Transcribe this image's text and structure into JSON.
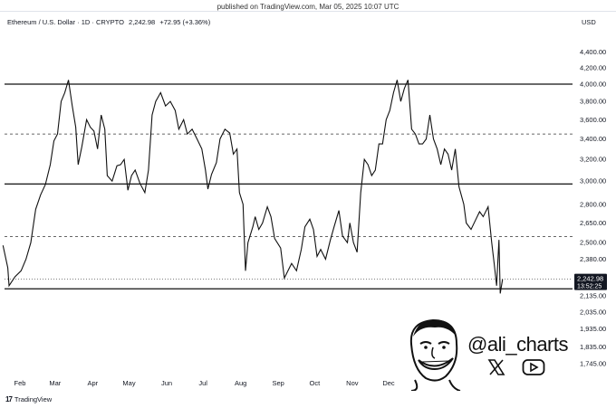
{
  "header": {
    "published": "published on TradingView.com, Mar 05, 2025 10:07 UTC",
    "symbol": "Ethereum / U.S. Dollar · 1D · CRYPTO",
    "last_price": "2,242.98",
    "change": "+72.95 (+3.36%)",
    "currency": "USD"
  },
  "footer": {
    "brand": "TradingView"
  },
  "author": {
    "handle": "@ali_charts",
    "icons": [
      "x-icon",
      "youtube-icon"
    ]
  },
  "price_tag": {
    "price": "2,242.98",
    "countdown": "13:52:25"
  },
  "chart_data": {
    "type": "line",
    "yscale": "log",
    "ylim": [
      1700,
      4700
    ],
    "y_ticks": [
      "4,400.00",
      "4,200.00",
      "4,000.00",
      "3,800.00",
      "3,600.00",
      "3,400.00",
      "3,200.00",
      "3,000.00",
      "2,800.00",
      "2,650.00",
      "2,500.00",
      "2,380.00",
      "2,135.00",
      "2,035.00",
      "1,935.00",
      "1,835.00",
      "1,745.00"
    ],
    "x_ticks": [
      "Feb",
      "Mar",
      "Apr",
      "May",
      "Jun",
      "Jul",
      "Aug",
      "Sep",
      "Oct",
      "Nov",
      "Dec"
    ],
    "levels": {
      "solid": [
        4000,
        2975,
        2180
      ],
      "dashed": [
        3450,
        2545
      ],
      "dotted": [
        2242.98
      ]
    },
    "series": [
      {
        "values": [
          [
            "2024-01-18",
            2480
          ],
          [
            "2024-01-22",
            2320
          ],
          [
            "2024-01-23",
            2200
          ],
          [
            "2024-01-28",
            2260
          ],
          [
            "2024-02-02",
            2300
          ],
          [
            "2024-02-06",
            2380
          ],
          [
            "2024-02-10",
            2500
          ],
          [
            "2024-02-14",
            2760
          ],
          [
            "2024-02-18",
            2880
          ],
          [
            "2024-02-22",
            2970
          ],
          [
            "2024-02-26",
            3150
          ],
          [
            "2024-02-29",
            3380
          ],
          [
            "2024-03-03",
            3450
          ],
          [
            "2024-03-06",
            3800
          ],
          [
            "2024-03-09",
            3900
          ],
          [
            "2024-03-12",
            4050
          ],
          [
            "2024-03-15",
            3760
          ],
          [
            "2024-03-18",
            3520
          ],
          [
            "2024-03-20",
            3150
          ],
          [
            "2024-03-23",
            3320
          ],
          [
            "2024-03-27",
            3600
          ],
          [
            "2024-03-30",
            3520
          ],
          [
            "2024-04-02",
            3480
          ],
          [
            "2024-04-05",
            3300
          ],
          [
            "2024-04-08",
            3650
          ],
          [
            "2024-04-11",
            3500
          ],
          [
            "2024-04-13",
            3050
          ],
          [
            "2024-04-17",
            3000
          ],
          [
            "2024-04-21",
            3140
          ],
          [
            "2024-04-24",
            3150
          ],
          [
            "2024-04-27",
            3200
          ],
          [
            "2024-04-30",
            2920
          ],
          [
            "2024-05-03",
            3050
          ],
          [
            "2024-05-06",
            3100
          ],
          [
            "2024-05-10",
            2980
          ],
          [
            "2024-05-14",
            2900
          ],
          [
            "2024-05-17",
            3100
          ],
          [
            "2024-05-20",
            3650
          ],
          [
            "2024-05-23",
            3800
          ],
          [
            "2024-05-27",
            3900
          ],
          [
            "2024-05-31",
            3750
          ],
          [
            "2024-06-04",
            3800
          ],
          [
            "2024-06-08",
            3700
          ],
          [
            "2024-06-11",
            3500
          ],
          [
            "2024-06-15",
            3600
          ],
          [
            "2024-06-18",
            3450
          ],
          [
            "2024-06-22",
            3500
          ],
          [
            "2024-06-26",
            3400
          ],
          [
            "2024-06-30",
            3300
          ],
          [
            "2024-07-03",
            3100
          ],
          [
            "2024-07-05",
            2930
          ],
          [
            "2024-07-08",
            3060
          ],
          [
            "2024-07-12",
            3170
          ],
          [
            "2024-07-15",
            3400
          ],
          [
            "2024-07-19",
            3500
          ],
          [
            "2024-07-23",
            3460
          ],
          [
            "2024-07-26",
            3250
          ],
          [
            "2024-07-29",
            3300
          ],
          [
            "2024-07-31",
            2900
          ],
          [
            "2024-08-03",
            2800
          ],
          [
            "2024-08-05",
            2300
          ],
          [
            "2024-08-07",
            2500
          ],
          [
            "2024-08-11",
            2620
          ],
          [
            "2024-08-13",
            2700
          ],
          [
            "2024-08-16",
            2600
          ],
          [
            "2024-08-19",
            2650
          ],
          [
            "2024-08-23",
            2780
          ],
          [
            "2024-08-26",
            2700
          ],
          [
            "2024-08-29",
            2530
          ],
          [
            "2024-09-03",
            2460
          ],
          [
            "2024-09-06",
            2250
          ],
          [
            "2024-09-09",
            2300
          ],
          [
            "2024-09-12",
            2350
          ],
          [
            "2024-09-16",
            2300
          ],
          [
            "2024-09-20",
            2450
          ],
          [
            "2024-09-23",
            2620
          ],
          [
            "2024-09-27",
            2680
          ],
          [
            "2024-09-30",
            2600
          ],
          [
            "2024-10-03",
            2400
          ],
          [
            "2024-10-06",
            2450
          ],
          [
            "2024-10-10",
            2380
          ],
          [
            "2024-10-14",
            2520
          ],
          [
            "2024-10-17",
            2620
          ],
          [
            "2024-10-21",
            2750
          ],
          [
            "2024-10-24",
            2550
          ],
          [
            "2024-10-28",
            2500
          ],
          [
            "2024-10-30",
            2650
          ],
          [
            "2024-11-02",
            2500
          ],
          [
            "2024-11-05",
            2430
          ],
          [
            "2024-11-08",
            2900
          ],
          [
            "2024-11-11",
            3200
          ],
          [
            "2024-11-14",
            3150
          ],
          [
            "2024-11-17",
            3050
          ],
          [
            "2024-11-20",
            3100
          ],
          [
            "2024-11-23",
            3350
          ],
          [
            "2024-11-26",
            3350
          ],
          [
            "2024-11-29",
            3600
          ],
          [
            "2024-12-02",
            3700
          ],
          [
            "2024-12-05",
            3900
          ],
          [
            "2024-12-08",
            4050
          ],
          [
            "2024-12-11",
            3800
          ],
          [
            "2024-12-14",
            3950
          ],
          [
            "2024-12-17",
            4050
          ],
          [
            "2024-12-20",
            3500
          ],
          [
            "2024-12-23",
            3450
          ],
          [
            "2024-12-26",
            3350
          ],
          [
            "2024-12-29",
            3350
          ],
          [
            "2025-01-01",
            3400
          ],
          [
            "2025-01-04",
            3650
          ],
          [
            "2025-01-07",
            3400
          ],
          [
            "2025-01-10",
            3300
          ],
          [
            "2025-01-13",
            3150
          ],
          [
            "2025-01-16",
            3300
          ],
          [
            "2025-01-19",
            3250
          ],
          [
            "2025-01-22",
            3100
          ],
          [
            "2025-01-25",
            3300
          ],
          [
            "2025-01-28",
            2950
          ],
          [
            "2025-02-01",
            2800
          ],
          [
            "2025-02-03",
            2650
          ],
          [
            "2025-02-07",
            2600
          ],
          [
            "2025-02-11",
            2680
          ],
          [
            "2025-02-14",
            2740
          ],
          [
            "2025-02-17",
            2700
          ],
          [
            "2025-02-21",
            2780
          ],
          [
            "2025-02-24",
            2500
          ],
          [
            "2025-02-26",
            2350
          ],
          [
            "2025-02-28",
            2200
          ],
          [
            "2025-03-02",
            2520
          ],
          [
            "2025-03-03",
            2150
          ],
          [
            "2025-03-05",
            2242.98
          ]
        ]
      }
    ]
  }
}
